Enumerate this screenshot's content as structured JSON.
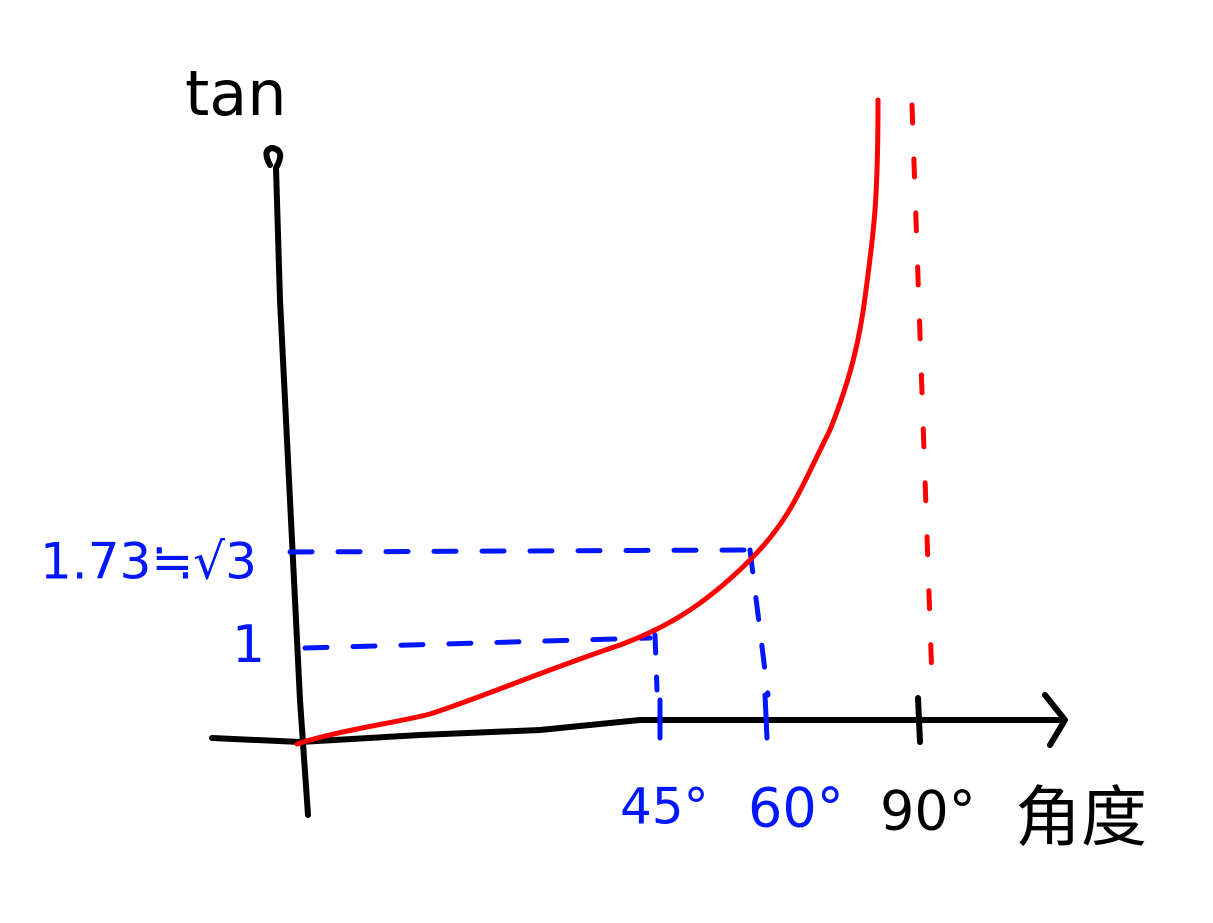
{
  "axes": {
    "y_label": "tan",
    "x_label": "角度"
  },
  "y_labels": [
    "1.73≒√3",
    "1"
  ],
  "x_labels": [
    "45°",
    "60°",
    "90°"
  ]
}
